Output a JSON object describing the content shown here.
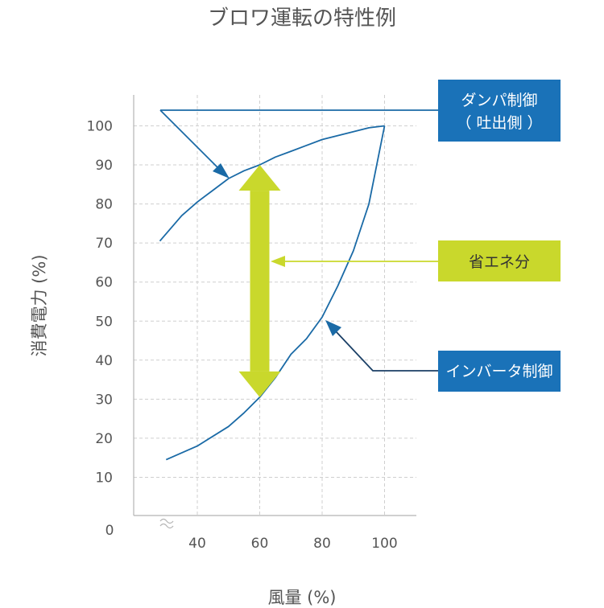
{
  "chart_data": {
    "type": "line",
    "title": "ブロワ運転の特性例",
    "xlabel": "風量 (%)",
    "ylabel": "消費電力 (%)",
    "x_ticks": [
      "40",
      "60",
      "80",
      "100"
    ],
    "y_ticks": [
      "100",
      "90",
      "80",
      "70",
      "60",
      "50",
      "40",
      "30",
      "20",
      "10"
    ],
    "origin_label": "0",
    "xlim": [
      27,
      110
    ],
    "ylim": [
      0,
      110
    ],
    "grid": true,
    "series": [
      {
        "name": "ダンパ制御（吐出側）",
        "x": [
          28,
          35,
          40,
          45,
          50,
          55,
          60,
          65,
          70,
          75,
          80,
          85,
          90,
          95,
          100
        ],
        "y": [
          70.5,
          77,
          80.5,
          83.5,
          86.5,
          88.5,
          90,
          92,
          93.5,
          95,
          96.5,
          97.5,
          98.5,
          99.5,
          100
        ]
      },
      {
        "name": "インバータ制御",
        "x": [
          30,
          40,
          50,
          55,
          60,
          65,
          70,
          75,
          80,
          85,
          90,
          95,
          100
        ],
        "y": [
          14.5,
          18,
          23,
          26.5,
          30.5,
          35.5,
          41.5,
          45.5,
          51,
          59,
          68,
          80,
          100
        ]
      }
    ],
    "annotations": {
      "damper_label_line1": "ダンパ制御",
      "damper_label_line2": "（ 吐出側 ）",
      "savings_label": "省エネ分",
      "inverter_label": "インバータ制御",
      "savings_arrow": {
        "x": 60,
        "y_top": 90,
        "y_bottom": 30.5
      }
    },
    "colors": {
      "curve": "#1a6aa6",
      "label_box": "#1a72b8",
      "savings": "#c9d82c",
      "grid": "#cfcfcf",
      "text": "#555555"
    }
  }
}
